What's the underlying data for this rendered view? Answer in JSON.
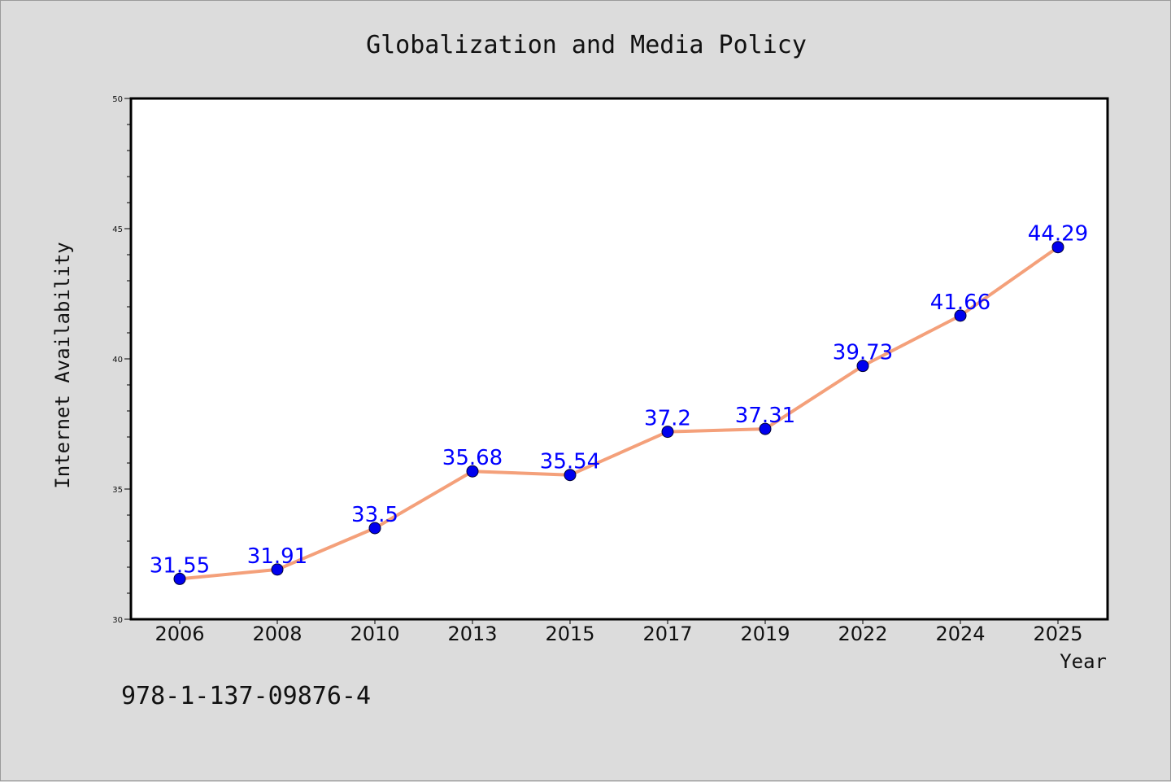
{
  "chart_data": {
    "type": "line",
    "title": "Globalization and Media Policy",
    "xlabel": "Year",
    "ylabel": "Internet Availability",
    "categories": [
      "2006",
      "2008",
      "2010",
      "2013",
      "2015",
      "2017",
      "2019",
      "2022",
      "2024",
      "2025"
    ],
    "series": [
      {
        "values": [
          31.55,
          31.91,
          33.5,
          35.68,
          35.54,
          37.2,
          37.31,
          39.73,
          41.66,
          44.29
        ],
        "labels": [
          "31.55",
          "31.91",
          "33.5",
          "35.68",
          "35.54",
          "37.2",
          "37.31",
          "39.73",
          "41.66",
          "44.29"
        ],
        "line_color": "#f4a07a",
        "marker_color": "#0000ee"
      }
    ],
    "ylim": [
      30,
      50
    ],
    "yticks": [
      "30",
      "35",
      "40",
      "45",
      "50"
    ],
    "grid": false,
    "legend": "none"
  },
  "annotation": "978-1-137-09876-4"
}
